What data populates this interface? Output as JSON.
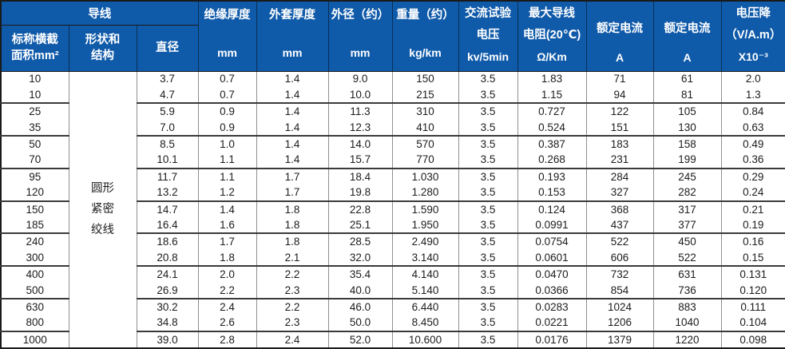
{
  "colors": {
    "header_bg": "#0f5aa9",
    "header_text": "#ffffff",
    "grid_line": "#8f8f8f",
    "group_line": "#3a3a3a",
    "outer_border": "#1a1a1a",
    "body_bg": "#ffffff"
  },
  "header": {
    "conductor_group": "导线",
    "area": [
      "标称横截",
      "面积mm²"
    ],
    "shape": [
      "形状和",
      "结构"
    ],
    "diameter": [
      "直径"
    ],
    "insulation": [
      "绝缘厚度",
      "mm"
    ],
    "jacket": [
      "外套厚度",
      "mm"
    ],
    "outer_diameter": [
      "外径（约）",
      "mm"
    ],
    "weight": [
      "重量（约）",
      "kg/km"
    ],
    "ac_test_voltage": [
      "交流试验",
      "电压",
      "kv/5min"
    ],
    "max_resistance": [
      "最大导线",
      "电阻(20℃)",
      "Ω/Km"
    ],
    "rated_current_row_icon": [
      "额定电流",
      "A"
    ],
    "rated_current_grid_icon": [
      "额定电流",
      "A"
    ],
    "voltage_drop": [
      "电压降",
      "（V/A.m）",
      "X10⁻³"
    ]
  },
  "shape_cell": [
    "圆形",
    "紧密",
    "绞线"
  ],
  "rows": [
    [
      "10",
      "3.7",
      "0.7",
      "1.4",
      "9.0",
      "150",
      "3.5",
      "1.83",
      "71",
      "61",
      "2.0"
    ],
    [
      "10",
      "4.7",
      "0.7",
      "1.4",
      "10.0",
      "215",
      "3.5",
      "1.15",
      "94",
      "81",
      "1.3"
    ],
    [
      "25",
      "5.9",
      "0.9",
      "1.4",
      "11.3",
      "310",
      "3.5",
      "0.727",
      "122",
      "105",
      "0.84"
    ],
    [
      "35",
      "7.0",
      "0.9",
      "1.4",
      "12.3",
      "410",
      "3.5",
      "0.524",
      "151",
      "130",
      "0.63"
    ],
    [
      "50",
      "8.5",
      "1.0",
      "1.4",
      "14.0",
      "570",
      "3.5",
      "0.387",
      "183",
      "158",
      "0.49"
    ],
    [
      "70",
      "10.1",
      "1.1",
      "1.4",
      "15.7",
      "770",
      "3.5",
      "0.268",
      "231",
      "199",
      "0.36"
    ],
    [
      "95",
      "11.7",
      "1.1",
      "1.7",
      "18.4",
      "1.030",
      "3.5",
      "0.193",
      "284",
      "245",
      "0.29"
    ],
    [
      "120",
      "13.2",
      "1.2",
      "1.7",
      "19.8",
      "1.280",
      "3.5",
      "0.153",
      "327",
      "282",
      "0.24"
    ],
    [
      "150",
      "14.7",
      "1.4",
      "1.8",
      "22.8",
      "1.590",
      "3.5",
      "0.124",
      "368",
      "317",
      "0.21"
    ],
    [
      "185",
      "16.4",
      "1.6",
      "1.8",
      "25.1",
      "1.950",
      "3.5",
      "0.0991",
      "437",
      "377",
      "0.19"
    ],
    [
      "240",
      "18.6",
      "1.7",
      "1.8",
      "28.5",
      "2.490",
      "3.5",
      "0.0754",
      "522",
      "450",
      "0.16"
    ],
    [
      "300",
      "20.8",
      "1.8",
      "2.1",
      "32.0",
      "3.140",
      "3.5",
      "0.0601",
      "606",
      "522",
      "0.15"
    ],
    [
      "400",
      "24.1",
      "2.0",
      "2.2",
      "35.4",
      "4.140",
      "3.5",
      "0.0470",
      "732",
      "631",
      "0.131"
    ],
    [
      "500",
      "26.9",
      "2.2",
      "2.3",
      "40.0",
      "5.140",
      "3.5",
      "0.0366",
      "854",
      "736",
      "0.120"
    ],
    [
      "630",
      "30.2",
      "2.4",
      "2.2",
      "46.0",
      "6.440",
      "3.5",
      "0.0283",
      "1024",
      "883",
      "0.111"
    ],
    [
      "800",
      "34.8",
      "2.6",
      "2.3",
      "50.0",
      "8.450",
      "3.5",
      "0.0221",
      "1206",
      "1040",
      "0.104"
    ],
    [
      "1000",
      "39.0",
      "2.8",
      "2.4",
      "52.0",
      "10.600",
      "3.5",
      "0.0176",
      "1379",
      "1220",
      "0.098"
    ]
  ],
  "group_end_rows": [
    1,
    3,
    5,
    7,
    9,
    11,
    13,
    15
  ]
}
